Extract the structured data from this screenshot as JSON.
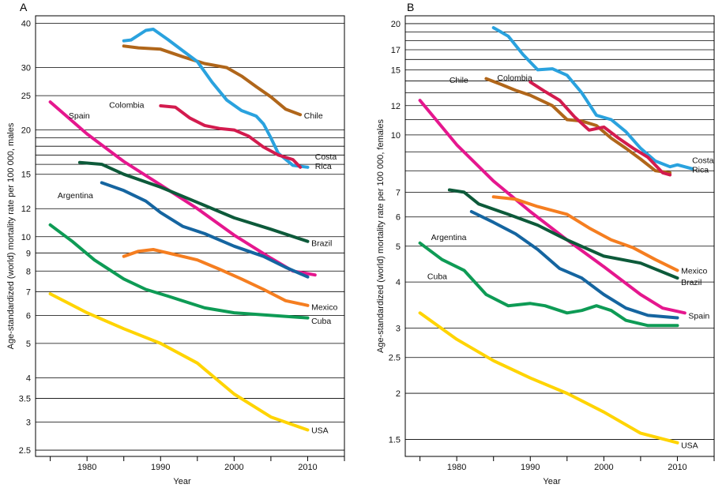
{
  "chart_data": [
    {
      "type": "line",
      "panel": "A",
      "ylabel": "Age-standardized (world) mortality rate per 100 000, males",
      "xlabel": "Year",
      "y_scale": "log",
      "xlim": [
        1973,
        2015
      ],
      "ylim": [
        2.4,
        42
      ],
      "x_ticks": [
        1980,
        1990,
        2000,
        2010
      ],
      "y_ticks": [
        2.5,
        3,
        3.5,
        4,
        5,
        6,
        7,
        8,
        9,
        10,
        12,
        15,
        20,
        25,
        30,
        40
      ],
      "y_ticks_unlabeled": [
        16,
        17,
        18,
        19
      ],
      "series": [
        {
          "name": "Chile",
          "color": "#b0661a",
          "x": [
            1985,
            1987,
            1990,
            1993,
            1996,
            1999,
            2001,
            2003,
            2005,
            2007,
            2009
          ],
          "y": [
            34.5,
            34.1,
            33.8,
            32.2,
            30.8,
            30.0,
            28.4,
            26.5,
            24.8,
            22.9,
            22.1
          ],
          "label_pos": [
            2009.5,
            22.0
          ]
        },
        {
          "name": "Costa Rica",
          "color": "#2aa2de",
          "x": [
            1985,
            1986,
            1988,
            1989,
            1991,
            1993,
            1995,
            1997,
            1999,
            2001,
            2003,
            2004,
            2005,
            2006,
            2008,
            2010
          ],
          "y": [
            35.7,
            35.9,
            38.2,
            38.5,
            36.0,
            33.5,
            31.2,
            27.3,
            24.3,
            22.7,
            21.9,
            20.8,
            19.0,
            17.2,
            15.9,
            15.7
          ],
          "label_lines": [
            "Costa",
            "Rica"
          ],
          "label_pos": [
            2011,
            16.5
          ]
        },
        {
          "name": "Colombia",
          "color": "#d31b4e",
          "x": [
            1990,
            1992,
            1994,
            1996,
            1998,
            2000,
            2002,
            2004,
            2006,
            2008,
            2009
          ],
          "y": [
            23.4,
            23.2,
            21.6,
            20.6,
            20.2,
            20.0,
            19.2,
            17.9,
            17.0,
            16.5,
            15.7
          ],
          "label_pos": [
            1983,
            23.6
          ]
        },
        {
          "name": "Spain",
          "color": "#e5178e",
          "x": [
            1975,
            1980,
            1985,
            1990,
            1995,
            2000,
            2005,
            2008,
            2011
          ],
          "y": [
            24.0,
            19.5,
            16.3,
            14.0,
            12.0,
            10.1,
            8.7,
            8.0,
            7.8
          ],
          "label_pos": [
            1977.5,
            22.0
          ]
        },
        {
          "name": "Brazil",
          "color": "#0d5a3a",
          "x": [
            1979,
            1982,
            1985,
            1990,
            1995,
            2000,
            2005,
            2010
          ],
          "y": [
            16.2,
            16.0,
            15.0,
            13.8,
            12.5,
            11.3,
            10.5,
            9.7
          ],
          "label_pos": [
            2010.5,
            9.6
          ]
        },
        {
          "name": "Argentina",
          "color": "#1565a0",
          "x": [
            1982,
            1985,
            1988,
            1990,
            1993,
            1996,
            2000,
            2004,
            2007,
            2010
          ],
          "y": [
            14.2,
            13.5,
            12.6,
            11.7,
            10.7,
            10.2,
            9.4,
            8.8,
            8.2,
            7.7
          ],
          "label_pos": [
            1976,
            13.1
          ]
        },
        {
          "name": "Mexico",
          "color": "#f57e20",
          "x": [
            1985,
            1987,
            1989,
            1990,
            1992,
            1995,
            1998,
            2001,
            2004,
            2007,
            2010
          ],
          "y": [
            8.8,
            9.1,
            9.2,
            9.1,
            8.9,
            8.6,
            8.1,
            7.6,
            7.1,
            6.6,
            6.4
          ],
          "label_pos": [
            2010.5,
            6.35
          ]
        },
        {
          "name": "Cuba",
          "color": "#0e9b55",
          "x": [
            1975,
            1978,
            1981,
            1985,
            1988,
            1991,
            1996,
            2000,
            2005,
            2010
          ],
          "y": [
            10.8,
            9.7,
            8.6,
            7.6,
            7.1,
            6.8,
            6.3,
            6.1,
            6.0,
            5.9
          ],
          "label_pos": [
            2010.5,
            5.8
          ]
        },
        {
          "name": "USA",
          "color": "#ffd400",
          "x": [
            1975,
            1980,
            1985,
            1990,
            1995,
            2000,
            2005,
            2010
          ],
          "y": [
            6.9,
            6.1,
            5.5,
            5.0,
            4.4,
            3.6,
            3.1,
            2.85
          ],
          "label_pos": [
            2010.5,
            2.85
          ]
        }
      ]
    },
    {
      "type": "line",
      "panel": "B",
      "ylabel": "Age-standardized (world) mortality rate per 100 000, females",
      "xlabel": "Year",
      "y_scale": "log",
      "xlim": [
        1973,
        2015
      ],
      "ylim": [
        1.35,
        21
      ],
      "x_ticks": [
        1980,
        1990,
        2000,
        2010
      ],
      "y_ticks": [
        1.5,
        2,
        2.5,
        3,
        4,
        5,
        6,
        7,
        10,
        12,
        15,
        17,
        20
      ],
      "y_ticks_unlabeled": [
        8,
        9,
        11,
        13,
        14,
        16,
        18,
        19
      ],
      "series": [
        {
          "name": "Costa Rica",
          "color": "#2aa2de",
          "x": [
            1985,
            1987,
            1989,
            1991,
            1993,
            1995,
            1997,
            1999,
            2001,
            2003,
            2005,
            2007,
            2009,
            2010,
            2012
          ],
          "y": [
            19.5,
            18.5,
            16.5,
            15.0,
            15.1,
            14.5,
            13.0,
            11.3,
            11.0,
            10.2,
            9.2,
            8.5,
            8.2,
            8.3,
            8.1
          ],
          "label_lines": [
            "Costa",
            "Rica"
          ],
          "label_pos": [
            2012,
            8.4
          ]
        },
        {
          "name": "Chile",
          "color": "#b0661a",
          "x": [
            1984,
            1986,
            1988,
            1990,
            1993,
            1995,
            1997,
            1999,
            2001,
            2003,
            2005,
            2007,
            2009
          ],
          "y": [
            14.2,
            13.7,
            13.2,
            12.8,
            12.0,
            11.0,
            10.9,
            10.6,
            9.8,
            9.2,
            8.6,
            8.0,
            7.9
          ],
          "label_pos": [
            1979,
            14.1
          ]
        },
        {
          "name": "Colombia",
          "color": "#d31b4e",
          "x": [
            1990,
            1992,
            1994,
            1996,
            1998,
            2000,
            2002,
            2004,
            2006,
            2008,
            2009
          ],
          "y": [
            13.9,
            13.1,
            12.4,
            11.2,
            10.3,
            10.5,
            9.8,
            9.2,
            8.7,
            7.9,
            7.8
          ],
          "label_pos": [
            1985.5,
            14.3
          ]
        },
        {
          "name": "Spain",
          "color": "#e5178e",
          "x": [
            1975,
            1980,
            1985,
            1990,
            1995,
            2000,
            2005,
            2008,
            2011
          ],
          "y": [
            12.4,
            9.4,
            7.5,
            6.2,
            5.2,
            4.4,
            3.7,
            3.4,
            3.3
          ],
          "label_pos": [
            2011.5,
            3.25
          ]
        },
        {
          "name": "Brazil",
          "color": "#0d5a3a",
          "x": [
            1979,
            1981,
            1983,
            1987,
            1991,
            1995,
            2000,
            2005,
            2010
          ],
          "y": [
            7.1,
            7.0,
            6.5,
            6.1,
            5.7,
            5.2,
            4.7,
            4.5,
            4.1
          ],
          "label_pos": [
            2010.5,
            4.0
          ]
        },
        {
          "name": "Mexico",
          "color": "#f57e20",
          "x": [
            1985,
            1988,
            1991,
            1995,
            1998,
            2001,
            2004,
            2007,
            2010
          ],
          "y": [
            6.8,
            6.7,
            6.4,
            6.1,
            5.6,
            5.2,
            4.95,
            4.6,
            4.3
          ],
          "label_pos": [
            2010.5,
            4.3
          ]
        },
        {
          "name": "Argentina",
          "color": "#1565a0",
          "x": [
            1982,
            1985,
            1988,
            1991,
            1994,
            1997,
            2000,
            2003,
            2006,
            2010
          ],
          "y": [
            6.2,
            5.8,
            5.4,
            4.9,
            4.35,
            4.1,
            3.7,
            3.4,
            3.25,
            3.2
          ],
          "label_pos": [
            1976.5,
            5.3
          ]
        },
        {
          "name": "Cuba",
          "color": "#0e9b55",
          "x": [
            1975,
            1978,
            1981,
            1984,
            1987,
            1990,
            1992,
            1995,
            1997,
            1999,
            2001,
            2003,
            2006,
            2010
          ],
          "y": [
            5.1,
            4.6,
            4.3,
            3.7,
            3.45,
            3.5,
            3.45,
            3.3,
            3.35,
            3.45,
            3.35,
            3.15,
            3.05,
            3.05
          ],
          "label_pos": [
            1976,
            4.15
          ]
        },
        {
          "name": "USA",
          "color": "#ffd400",
          "x": [
            1975,
            1980,
            1985,
            1990,
            1995,
            2000,
            2005,
            2010
          ],
          "y": [
            3.3,
            2.8,
            2.45,
            2.2,
            2.0,
            1.78,
            1.56,
            1.47
          ],
          "label_pos": [
            2010.5,
            1.45
          ]
        }
      ]
    }
  ]
}
